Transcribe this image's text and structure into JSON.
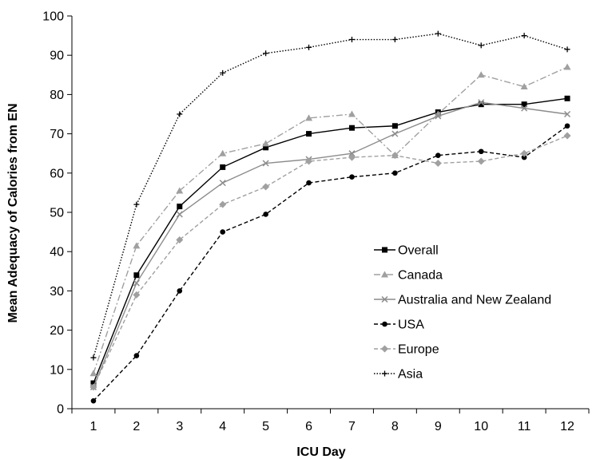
{
  "chart_data": {
    "type": "line",
    "title": "",
    "xlabel": "ICU Day",
    "ylabel": "Mean Adequacy of Calories from EN",
    "x": [
      1,
      2,
      3,
      4,
      5,
      6,
      7,
      8,
      9,
      10,
      11,
      12
    ],
    "ylim": [
      0,
      100
    ],
    "yticks": [
      0,
      10,
      20,
      30,
      40,
      50,
      60,
      70,
      80,
      90,
      100
    ],
    "grid": false,
    "legend_position": "right",
    "series": [
      {
        "name": "Overall",
        "color": "#000000",
        "dash": "solid",
        "marker": "square",
        "values": [
          6.5,
          34,
          51.5,
          61.5,
          66.5,
          70,
          71.5,
          72,
          75.5,
          77.5,
          77.5,
          79
        ]
      },
      {
        "name": "Canada",
        "color": "#a0a0a0",
        "dash": "dashdot",
        "marker": "triangle",
        "values": [
          9,
          41.5,
          55.5,
          65,
          67.5,
          74,
          75,
          64.5,
          75,
          85,
          82,
          87
        ]
      },
      {
        "name": "Australia and New Zealand",
        "color": "#8c8c8c",
        "dash": "solid",
        "marker": "x",
        "values": [
          5.5,
          32,
          49.5,
          57.5,
          62.5,
          63.5,
          65,
          70,
          74.5,
          78,
          76.5,
          75
        ]
      },
      {
        "name": "USA",
        "color": "#000000",
        "dash": "dash",
        "marker": "circle",
        "values": [
          2,
          13.5,
          30,
          45,
          49.5,
          57.5,
          59,
          60,
          64.5,
          65.5,
          64,
          72
        ]
      },
      {
        "name": "Europe",
        "color": "#a0a0a0",
        "dash": "dash",
        "marker": "diamond",
        "values": [
          5.5,
          29,
          43,
          52,
          56.5,
          63,
          64,
          64.5,
          62.5,
          63,
          65,
          69.5
        ]
      },
      {
        "name": "Asia",
        "color": "#000000",
        "dash": "dot",
        "marker": "plus",
        "values": [
          13,
          52,
          75,
          85.5,
          90.5,
          92,
          94,
          94,
          95.5,
          92.5,
          95,
          91.5
        ]
      }
    ]
  }
}
